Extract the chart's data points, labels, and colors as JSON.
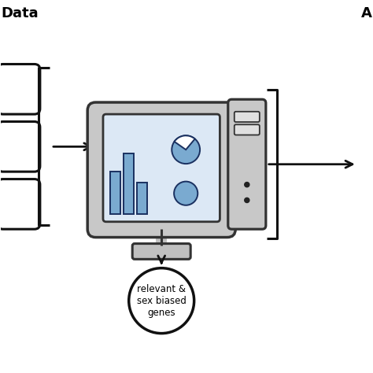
{
  "bg_color": "#ffffff",
  "bar_color": "#7aaad0",
  "bar_outline": "#1a3060",
  "pie_color": "#7aaad0",
  "pie_outline": "#1a3060",
  "monitor_body_color": "#c8c8c8",
  "monitor_border": "#333333",
  "screen_bg": "#dce8f5",
  "stand_color": "#c0c0c0",
  "tower_color": "#c8c8c8",
  "tower_border": "#333333",
  "arrow_color": "#111111",
  "bracket_color": "#111111",
  "label_left": "Data",
  "label_right": "A",
  "circle_text": "relevant &\nsex biased\ngenes",
  "title_fontsize": 13,
  "circle_fontsize": 8.5,
  "lw_bracket": 2.2,
  "lw_monitor": 2.5,
  "lw_arrow": 2.0
}
